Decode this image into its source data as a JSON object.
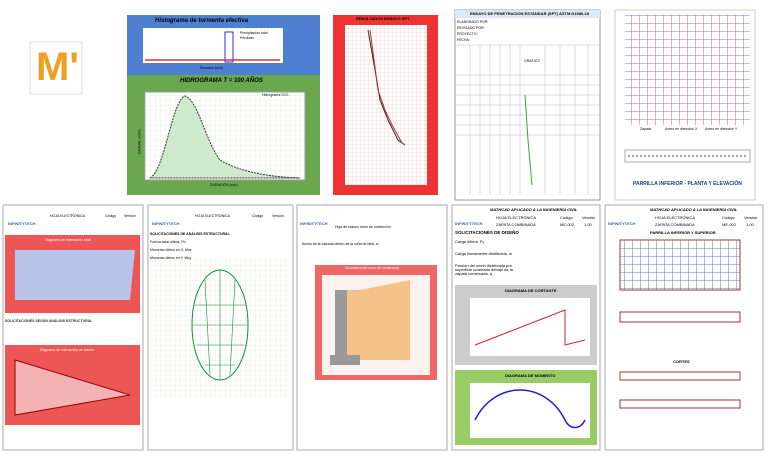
{
  "logo": "M'",
  "hydro": {
    "title": "Histograma de tormenta efectiva",
    "title2": "HIDROGRAMA T = 100 AÑOS",
    "legend1": "Precipitación total",
    "legend2": "Pérdidas",
    "legend3": "Hidrograma SCS",
    "xlabel1": "Duración (min)",
    "xlabel2": "DURACIÓN (min)",
    "ylabel": "CAUDAL (m3/s)"
  },
  "spt_chart": {
    "title": "RESULTADOS ENSAYO SPT"
  },
  "spt_table": {
    "title": "ENSAYO DE PENETRACION ESTANDAR (SPT) ASTM D1586-18",
    "rows": [
      "ELABORADO POR:",
      "REVISADO POR:",
      "PROYECTO:",
      "FECHA:"
    ],
    "graph": "GRAFICO"
  },
  "grid_chart": {
    "title": "PARRILLA INFERIOR - PLANTA Y ELEVACIÓN",
    "legend": [
      "Zapata",
      "Acero en dirección X",
      "Acero en dirección Y"
    ]
  },
  "interaction": {
    "brand": "INFINITYTECH",
    "sheet": "HOJA ELECTRÓNICA",
    "code": "Código",
    "version": "Versión",
    "chart1": "Diagrama de interacción axial",
    "section": "SOLICITACIONES SEGÚN ANÁLISIS ESTRUCTURAL",
    "chart2": "Diagrama de interacción de diseño"
  },
  "mesh": {
    "brand": "INFINITYTECH",
    "sheet": "HOJA ELECTRÓNICA",
    "code": "Código",
    "version": "Versión",
    "section": "SOLICITACIONES DE ANÁLISIS ESTRUCTURAL",
    "rows": [
      "Fuerza axial última, Pu",
      "Momento último en X, Mux",
      "Momento último en Y, Muy"
    ]
  },
  "wall": {
    "brand": "INFINITYTECH",
    "heading": "Hoja de cálculo muro de contención",
    "text": "Ancho de la calzada dentro de la cuña de falla, a:",
    "chart": "Geometría del muro de contención"
  },
  "footing": {
    "brand": "INFINITYTECH",
    "header": "MATHCAD APLICADO A LA INGENIERÍA CIVIL",
    "sheet": "HOJA ELECTRÓNICA",
    "name": "ZAPATA COMBINADA",
    "code": "Código",
    "version": "Versión",
    "code_value": "ME-002",
    "version_value": "1.00",
    "section": "SOLICITACIONES DE DISEÑO",
    "items": [
      "Carga última, Pᵤ",
      "Carga linealmente distribuida, w",
      "Presión del suelo distribuida por superficie cuadrada debajo de la zapata combinada, q"
    ],
    "chart1": "DIAGRAMA DE CORTANTE",
    "chart2": "DIAGRAMA DE MOMENTO"
  },
  "grid2": {
    "brand": "INFINITYTECH",
    "header": "MATHCAD APLICADO A LA INGENIERÍA CIVIL",
    "sheet": "HOJA ELECTRÓNICA",
    "name": "ZAPATA COMBINADA",
    "code": "Código",
    "version": "Versión",
    "code_value": "ME-002",
    "version_value": "1.00",
    "section": "PARRILLA INFERIOR Y SUPERIOR",
    "cuts": "CORTES"
  }
}
